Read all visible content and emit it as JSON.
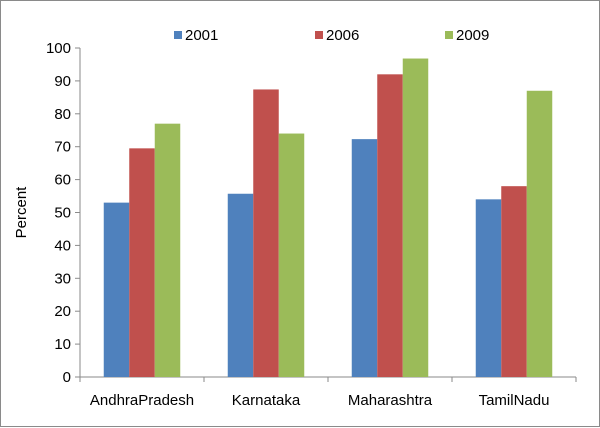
{
  "chart_data": {
    "type": "bar",
    "title": "",
    "xlabel": "",
    "ylabel": "Percent",
    "ylim": [
      0,
      100
    ],
    "yticks": [
      0,
      10,
      20,
      30,
      40,
      50,
      60,
      70,
      80,
      90,
      100
    ],
    "grid": false,
    "legend_position": "top",
    "categories": [
      "AndhraPradesh",
      "Karnataka",
      "Maharashtra",
      "TamilNadu"
    ],
    "series": [
      {
        "name": "2001",
        "color": "#4f81bd",
        "values": [
          53,
          55.7,
          72.3,
          54
        ]
      },
      {
        "name": "2006",
        "color": "#c0504d",
        "values": [
          69.5,
          87.4,
          92,
          58
        ]
      },
      {
        "name": "2009",
        "color": "#9bbb59",
        "values": [
          77,
          74,
          96.8,
          87
        ]
      }
    ]
  }
}
